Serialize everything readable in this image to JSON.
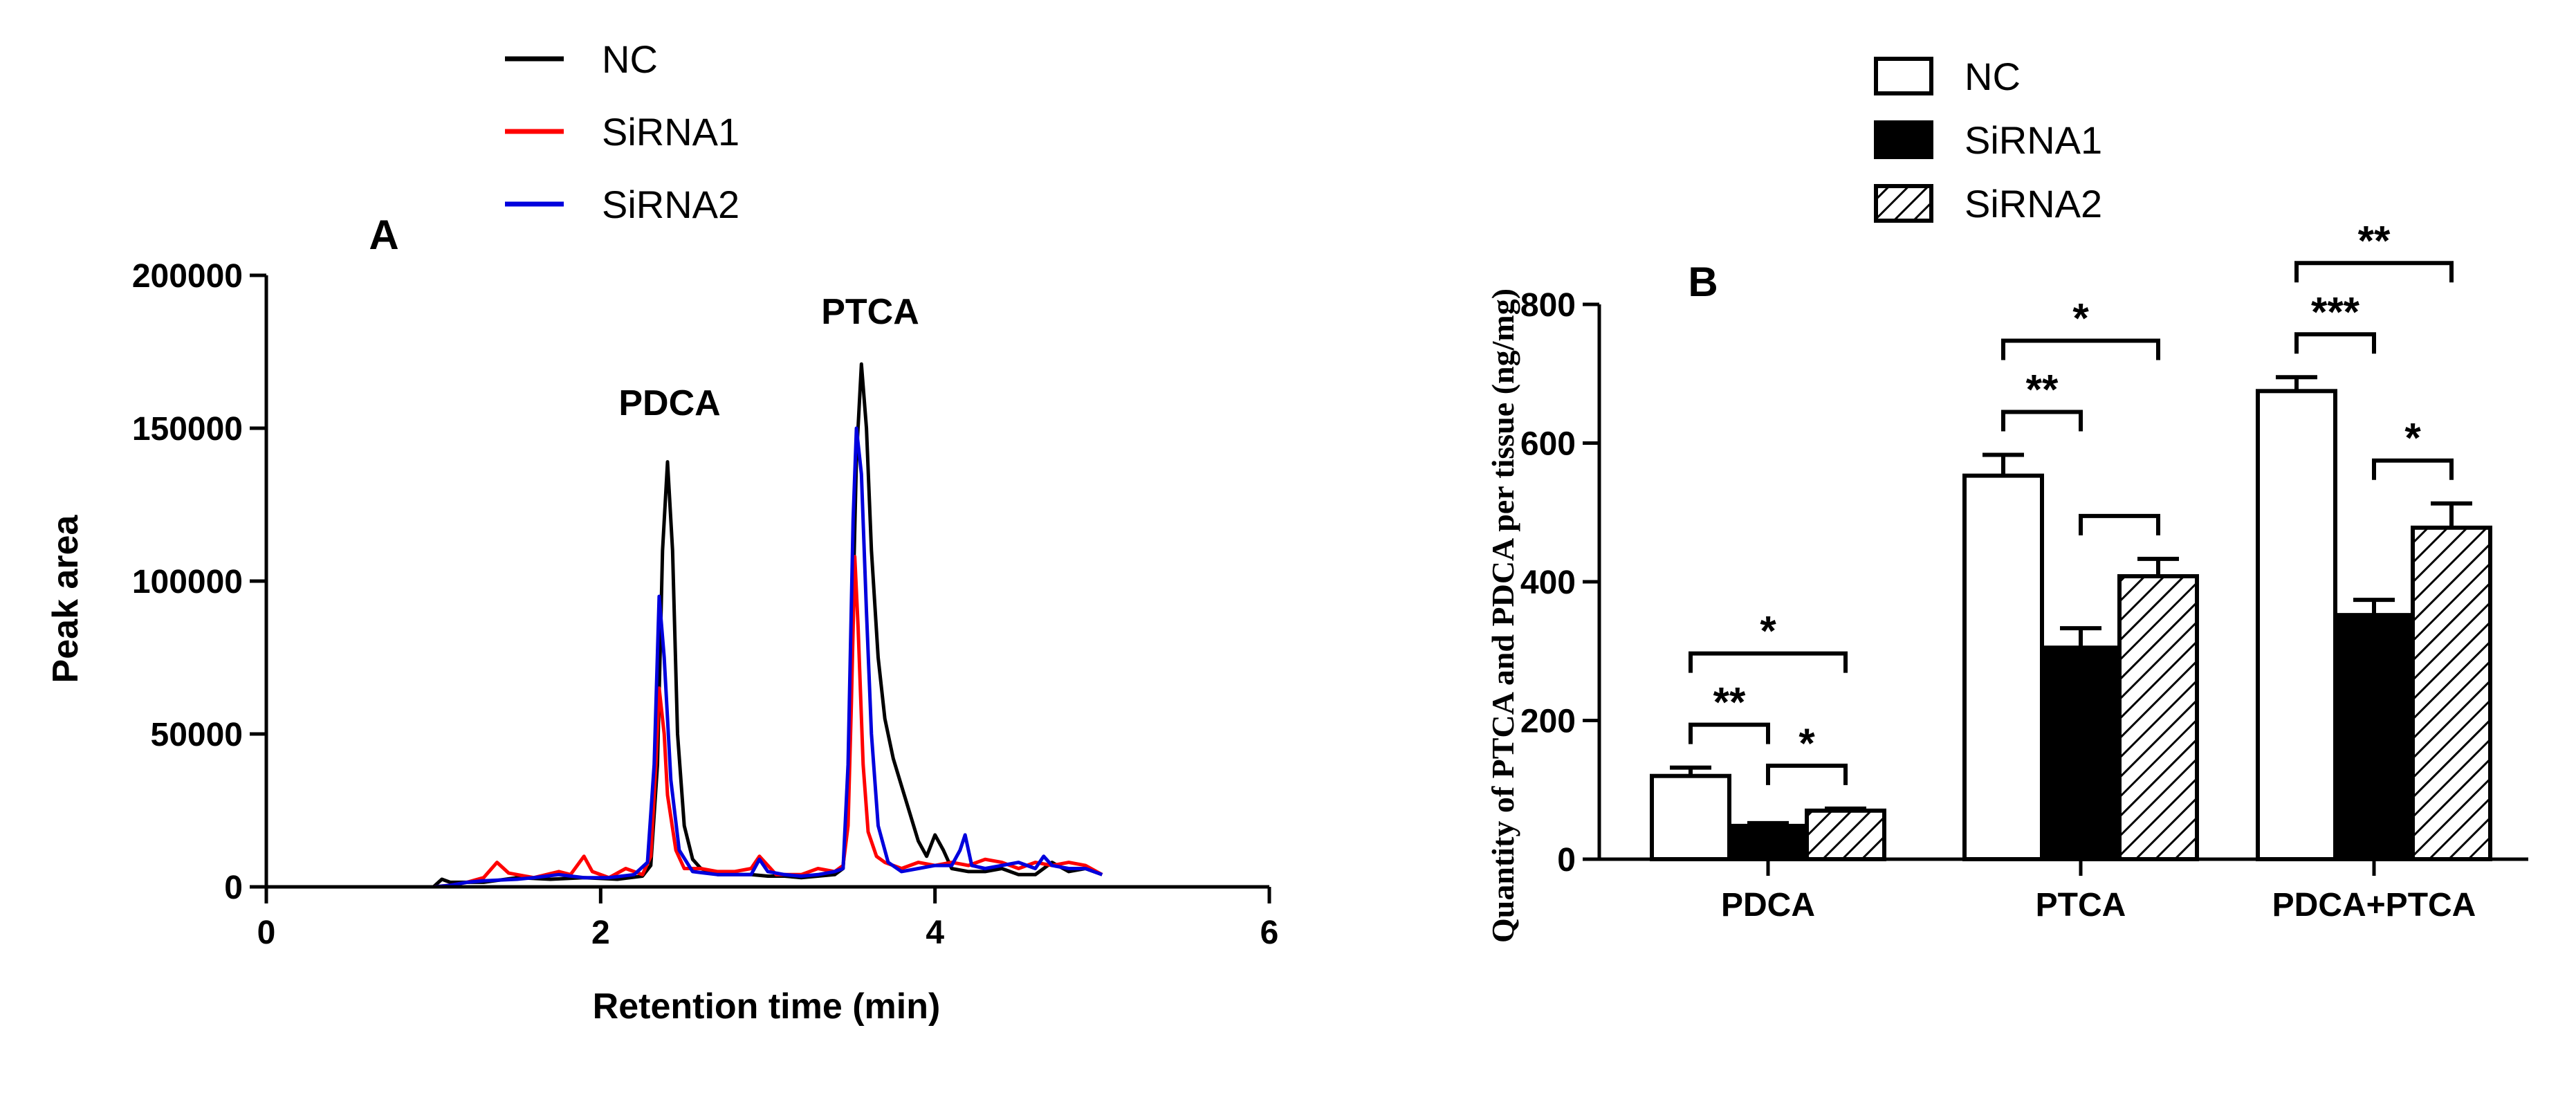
{
  "chart_data": [
    {
      "panel": "A",
      "type": "line",
      "panel_label": "A",
      "xlabel": "Retention time (min)",
      "ylabel": "Peak area",
      "xlim": [
        0,
        6
      ],
      "ylim": [
        0,
        200000
      ],
      "x_ticks": [
        "0",
        "2",
        "4",
        "6"
      ],
      "y_ticks": [
        "0",
        "50000",
        "100000",
        "150000",
        "200000"
      ],
      "annotations": [
        "PDCA",
        "PTCA"
      ],
      "legend_position": "top",
      "series": [
        {
          "name": "NC",
          "color": "#000000",
          "points": [
            [
              0,
              0
            ],
            [
              0.5,
              0
            ],
            [
              1.0,
              0
            ],
            [
              1.05,
              2500
            ],
            [
              1.1,
              1500
            ],
            [
              1.3,
              1500
            ],
            [
              1.5,
              3000
            ],
            [
              1.7,
              2500
            ],
            [
              1.9,
              3000
            ],
            [
              2.1,
              2500
            ],
            [
              2.25,
              3500
            ],
            [
              2.3,
              7000
            ],
            [
              2.34,
              40000
            ],
            [
              2.37,
              110000
            ],
            [
              2.4,
              139000
            ],
            [
              2.43,
              110000
            ],
            [
              2.46,
              50000
            ],
            [
              2.5,
              20000
            ],
            [
              2.55,
              9000
            ],
            [
              2.6,
              6000
            ],
            [
              2.7,
              4000
            ],
            [
              2.8,
              4000
            ],
            [
              2.9,
              4000
            ],
            [
              3.0,
              3500
            ],
            [
              3.1,
              3500
            ],
            [
              3.2,
              3000
            ],
            [
              3.3,
              3500
            ],
            [
              3.4,
              4000
            ],
            [
              3.45,
              6000
            ],
            [
              3.48,
              30000
            ],
            [
              3.5,
              70000
            ],
            [
              3.53,
              140000
            ],
            [
              3.56,
              171000
            ],
            [
              3.59,
              150000
            ],
            [
              3.62,
              110000
            ],
            [
              3.66,
              75000
            ],
            [
              3.7,
              55000
            ],
            [
              3.75,
              42000
            ],
            [
              3.8,
              33000
            ],
            [
              3.85,
              24000
            ],
            [
              3.9,
              15000
            ],
            [
              3.95,
              10000
            ],
            [
              4.0,
              17000
            ],
            [
              4.05,
              12000
            ],
            [
              4.1,
              6000
            ],
            [
              4.2,
              5000
            ],
            [
              4.3,
              5000
            ],
            [
              4.4,
              6000
            ],
            [
              4.5,
              4000
            ],
            [
              4.6,
              4000
            ],
            [
              4.7,
              8000
            ],
            [
              4.8,
              5000
            ],
            [
              4.9,
              6000
            ],
            [
              5.0,
              4000
            ]
          ]
        },
        {
          "name": "SiRNA1",
          "color": "#ff0000",
          "points": [
            [
              0,
              0
            ],
            [
              0.5,
              0
            ],
            [
              1.0,
              0
            ],
            [
              1.1,
              500
            ],
            [
              1.2,
              1500
            ],
            [
              1.3,
              3000
            ],
            [
              1.38,
              8000
            ],
            [
              1.45,
              4500
            ],
            [
              1.6,
              3000
            ],
            [
              1.75,
              5000
            ],
            [
              1.82,
              4000
            ],
            [
              1.9,
              10000
            ],
            [
              1.95,
              5000
            ],
            [
              2.05,
              3000
            ],
            [
              2.15,
              6000
            ],
            [
              2.25,
              4000
            ],
            [
              2.3,
              10000
            ],
            [
              2.33,
              40000
            ],
            [
              2.35,
              65000
            ],
            [
              2.38,
              50000
            ],
            [
              2.4,
              30000
            ],
            [
              2.45,
              12000
            ],
            [
              2.5,
              6000
            ],
            [
              2.6,
              6000
            ],
            [
              2.7,
              5000
            ],
            [
              2.8,
              5000
            ],
            [
              2.9,
              6000
            ],
            [
              2.95,
              10000
            ],
            [
              3.0,
              7000
            ],
            [
              3.05,
              4000
            ],
            [
              3.2,
              4000
            ],
            [
              3.3,
              6000
            ],
            [
              3.4,
              5000
            ],
            [
              3.45,
              7000
            ],
            [
              3.48,
              20000
            ],
            [
              3.5,
              60000
            ],
            [
              3.52,
              108000
            ],
            [
              3.54,
              85000
            ],
            [
              3.57,
              40000
            ],
            [
              3.6,
              18000
            ],
            [
              3.65,
              10000
            ],
            [
              3.7,
              8000
            ],
            [
              3.8,
              6000
            ],
            [
              3.9,
              8000
            ],
            [
              4.0,
              7000
            ],
            [
              4.1,
              8000
            ],
            [
              4.2,
              7000
            ],
            [
              4.3,
              9000
            ],
            [
              4.4,
              8000
            ],
            [
              4.5,
              6000
            ],
            [
              4.6,
              8000
            ],
            [
              4.7,
              7000
            ],
            [
              4.8,
              8000
            ],
            [
              4.9,
              7000
            ],
            [
              5.0,
              4000
            ]
          ]
        },
        {
          "name": "SiRNA2",
          "color": "#0000dd",
          "points": [
            [
              0,
              0
            ],
            [
              0.5,
              0
            ],
            [
              1.0,
              0
            ],
            [
              1.1,
              500
            ],
            [
              1.2,
              1500
            ],
            [
              1.3,
              2000
            ],
            [
              1.5,
              2500
            ],
            [
              1.6,
              3000
            ],
            [
              1.75,
              4000
            ],
            [
              1.9,
              3000
            ],
            [
              2.05,
              3000
            ],
            [
              2.2,
              4000
            ],
            [
              2.28,
              8000
            ],
            [
              2.32,
              40000
            ],
            [
              2.35,
              95000
            ],
            [
              2.38,
              75000
            ],
            [
              2.42,
              35000
            ],
            [
              2.47,
              12000
            ],
            [
              2.55,
              5000
            ],
            [
              2.7,
              4000
            ],
            [
              2.8,
              4000
            ],
            [
              2.9,
              4000
            ],
            [
              2.95,
              9000
            ],
            [
              3.0,
              5000
            ],
            [
              3.1,
              4000
            ],
            [
              3.2,
              3500
            ],
            [
              3.3,
              4000
            ],
            [
              3.4,
              5000
            ],
            [
              3.45,
              6000
            ],
            [
              3.48,
              40000
            ],
            [
              3.51,
              120000
            ],
            [
              3.53,
              150000
            ],
            [
              3.56,
              135000
            ],
            [
              3.59,
              90000
            ],
            [
              3.62,
              50000
            ],
            [
              3.66,
              20000
            ],
            [
              3.72,
              8000
            ],
            [
              3.8,
              5000
            ],
            [
              3.9,
              6000
            ],
            [
              4.0,
              7000
            ],
            [
              4.1,
              7000
            ],
            [
              4.15,
              12000
            ],
            [
              4.18,
              17000
            ],
            [
              4.22,
              7000
            ],
            [
              4.3,
              6000
            ],
            [
              4.4,
              7000
            ],
            [
              4.5,
              8000
            ],
            [
              4.6,
              6000
            ],
            [
              4.65,
              10000
            ],
            [
              4.7,
              7000
            ],
            [
              4.8,
              6000
            ],
            [
              4.9,
              6000
            ],
            [
              5.0,
              4000
            ]
          ]
        }
      ]
    },
    {
      "panel": "B",
      "type": "bar",
      "panel_label": "B",
      "ylabel": "Quantity of PTCA  and PDCA per tissue (ng/mg)",
      "xlabel": "",
      "ylim": [
        0,
        800
      ],
      "y_ticks": [
        "0",
        "200",
        "400",
        "600",
        "800"
      ],
      "categories": [
        "PDCA",
        "PTCA",
        "PDCA+PTCA"
      ],
      "legend_position": "top",
      "series": [
        {
          "name": "NC",
          "fill": "white",
          "values": [
            120,
            553,
            675
          ],
          "errors": [
            12,
            30,
            20
          ]
        },
        {
          "name": "SiRNA1",
          "fill": "black",
          "values": [
            48,
            305,
            352
          ],
          "errors": [
            4,
            28,
            22
          ]
        },
        {
          "name": "SiRNA2",
          "fill": "hatched",
          "values": [
            70,
            408,
            478
          ],
          "errors": [
            3,
            25,
            35
          ]
        }
      ],
      "significance": [
        {
          "category": "PDCA",
          "from": "NC",
          "to": "SiRNA2",
          "level": 1,
          "label": "*"
        },
        {
          "category": "PDCA",
          "from": "NC",
          "to": "SiRNA1",
          "level": 0,
          "label": "**"
        },
        {
          "category": "PDCA",
          "from": "SiRNA1",
          "to": "SiRNA2",
          "level": 0,
          "label": "*"
        },
        {
          "category": "PTCA",
          "from": "NC",
          "to": "SiRNA2",
          "level": 1,
          "label": "*"
        },
        {
          "category": "PTCA",
          "from": "NC",
          "to": "SiRNA1",
          "level": 0,
          "label": "**"
        },
        {
          "category": "PTCA",
          "from": "SiRNA1",
          "to": "SiRNA2",
          "level": 0,
          "label": ""
        },
        {
          "category": "PDCA+PTCA",
          "from": "NC",
          "to": "SiRNA2",
          "level": 1,
          "label": "**"
        },
        {
          "category": "PDCA+PTCA",
          "from": "NC",
          "to": "SiRNA1",
          "level": 0,
          "label": "***"
        },
        {
          "category": "PDCA+PTCA",
          "from": "SiRNA1",
          "to": "SiRNA2",
          "level": 0,
          "label": "*"
        }
      ]
    }
  ]
}
